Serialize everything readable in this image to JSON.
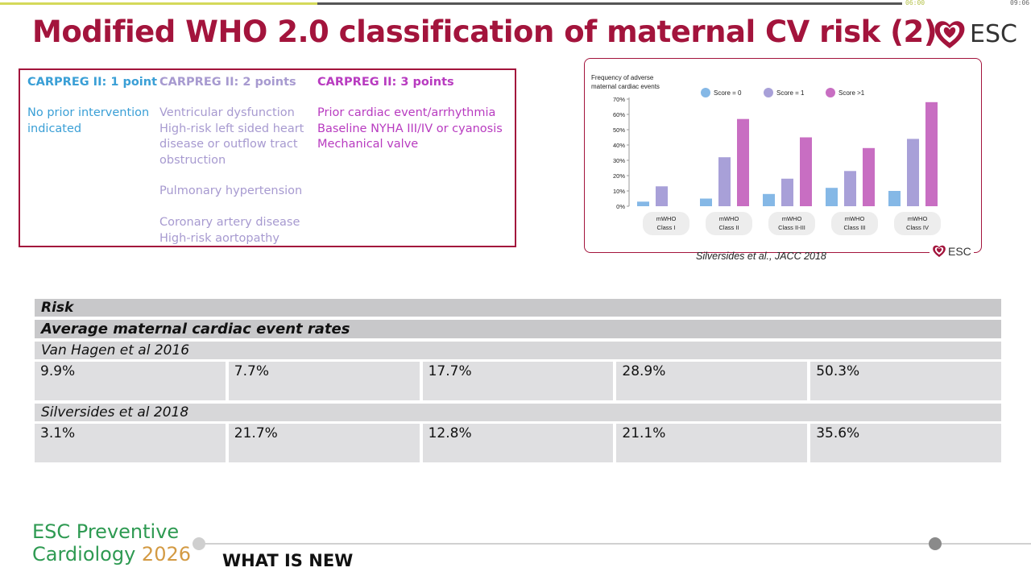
{
  "player": {
    "elapsed": "06:00",
    "total": "09:06",
    "progress": 0.352
  },
  "slide": {
    "title": "Modified WHO 2.0 classification of maternal CV risk (2)",
    "brand": "ESC",
    "colors": {
      "accent": "#a3143c",
      "c1": "#3a9fd6",
      "c2": "#a79ad0",
      "c3": "#b83bc0"
    }
  },
  "carpreg": {
    "col1": {
      "header": "CARPREG II: 1 point",
      "lines": [
        "No prior intervention",
        "indicated"
      ]
    },
    "col2": {
      "header": "CARPREG II: 2 points",
      "lines": [
        "Ventricular dysfunction",
        "High-risk left sided heart",
        "disease or outflow tract",
        "obstruction",
        "",
        "Pulmonary hypertension",
        "",
        "Coronary artery disease",
        "High-risk aortopathy"
      ]
    },
    "col3": {
      "header": "CARPREG II: 3 points",
      "lines": [
        "Prior cardiac event/arrhythmia",
        "Baseline NYHA III/IV or cyanosis",
        "Mechanical valve"
      ]
    }
  },
  "chart_data": {
    "type": "bar",
    "title": "Frequency of adverse maternal cardiac events",
    "title_lines": [
      "Frequency of adverse",
      "maternal cardiac events"
    ],
    "categories": [
      [
        "mWHO",
        "Class I"
      ],
      [
        "mWHO",
        "Class II"
      ],
      [
        "mWHO",
        "Class II-III"
      ],
      [
        "mWHO",
        "Class III"
      ],
      [
        "mWHO",
        "Class IV"
      ]
    ],
    "series": [
      {
        "name": "Score = 0",
        "color": "#85b8e6",
        "values": [
          3,
          5,
          8,
          12,
          10
        ]
      },
      {
        "name": "Score = 1",
        "color": "#a8a0d8",
        "values": [
          13,
          32,
          18,
          23,
          44
        ]
      },
      {
        "name": "Score >1",
        "color": "#c86ec2",
        "values": [
          null,
          57,
          45,
          38,
          68
        ]
      }
    ],
    "yticks": [
      "0%",
      "10%",
      "20%",
      "30%",
      "40%",
      "50%",
      "60%",
      "70%"
    ],
    "ylim": [
      0,
      70
    ],
    "legend": "top-right",
    "grid": false
  },
  "chart_footer": {
    "brand": "ESC",
    "citation": "Silversides et al., JACC 2018"
  },
  "table": {
    "risk_label": "Risk",
    "avg_label": "Average maternal cardiac event rates",
    "study1": {
      "name": "Van Hagen et al 2016",
      "values": [
        "9.9%",
        "7.7%",
        "17.7%",
        "28.9%",
        "50.3%"
      ]
    },
    "study2": {
      "name": "Silversides et al 2018",
      "values": [
        "3.1%",
        "21.7%",
        "12.8%",
        "21.1%",
        "35.6%"
      ]
    }
  },
  "footer": {
    "logo_line1": "ESC Preventive",
    "logo_line2a": "Cardiology ",
    "logo_line2b": "2026",
    "section": "WHAT IS NEW"
  }
}
